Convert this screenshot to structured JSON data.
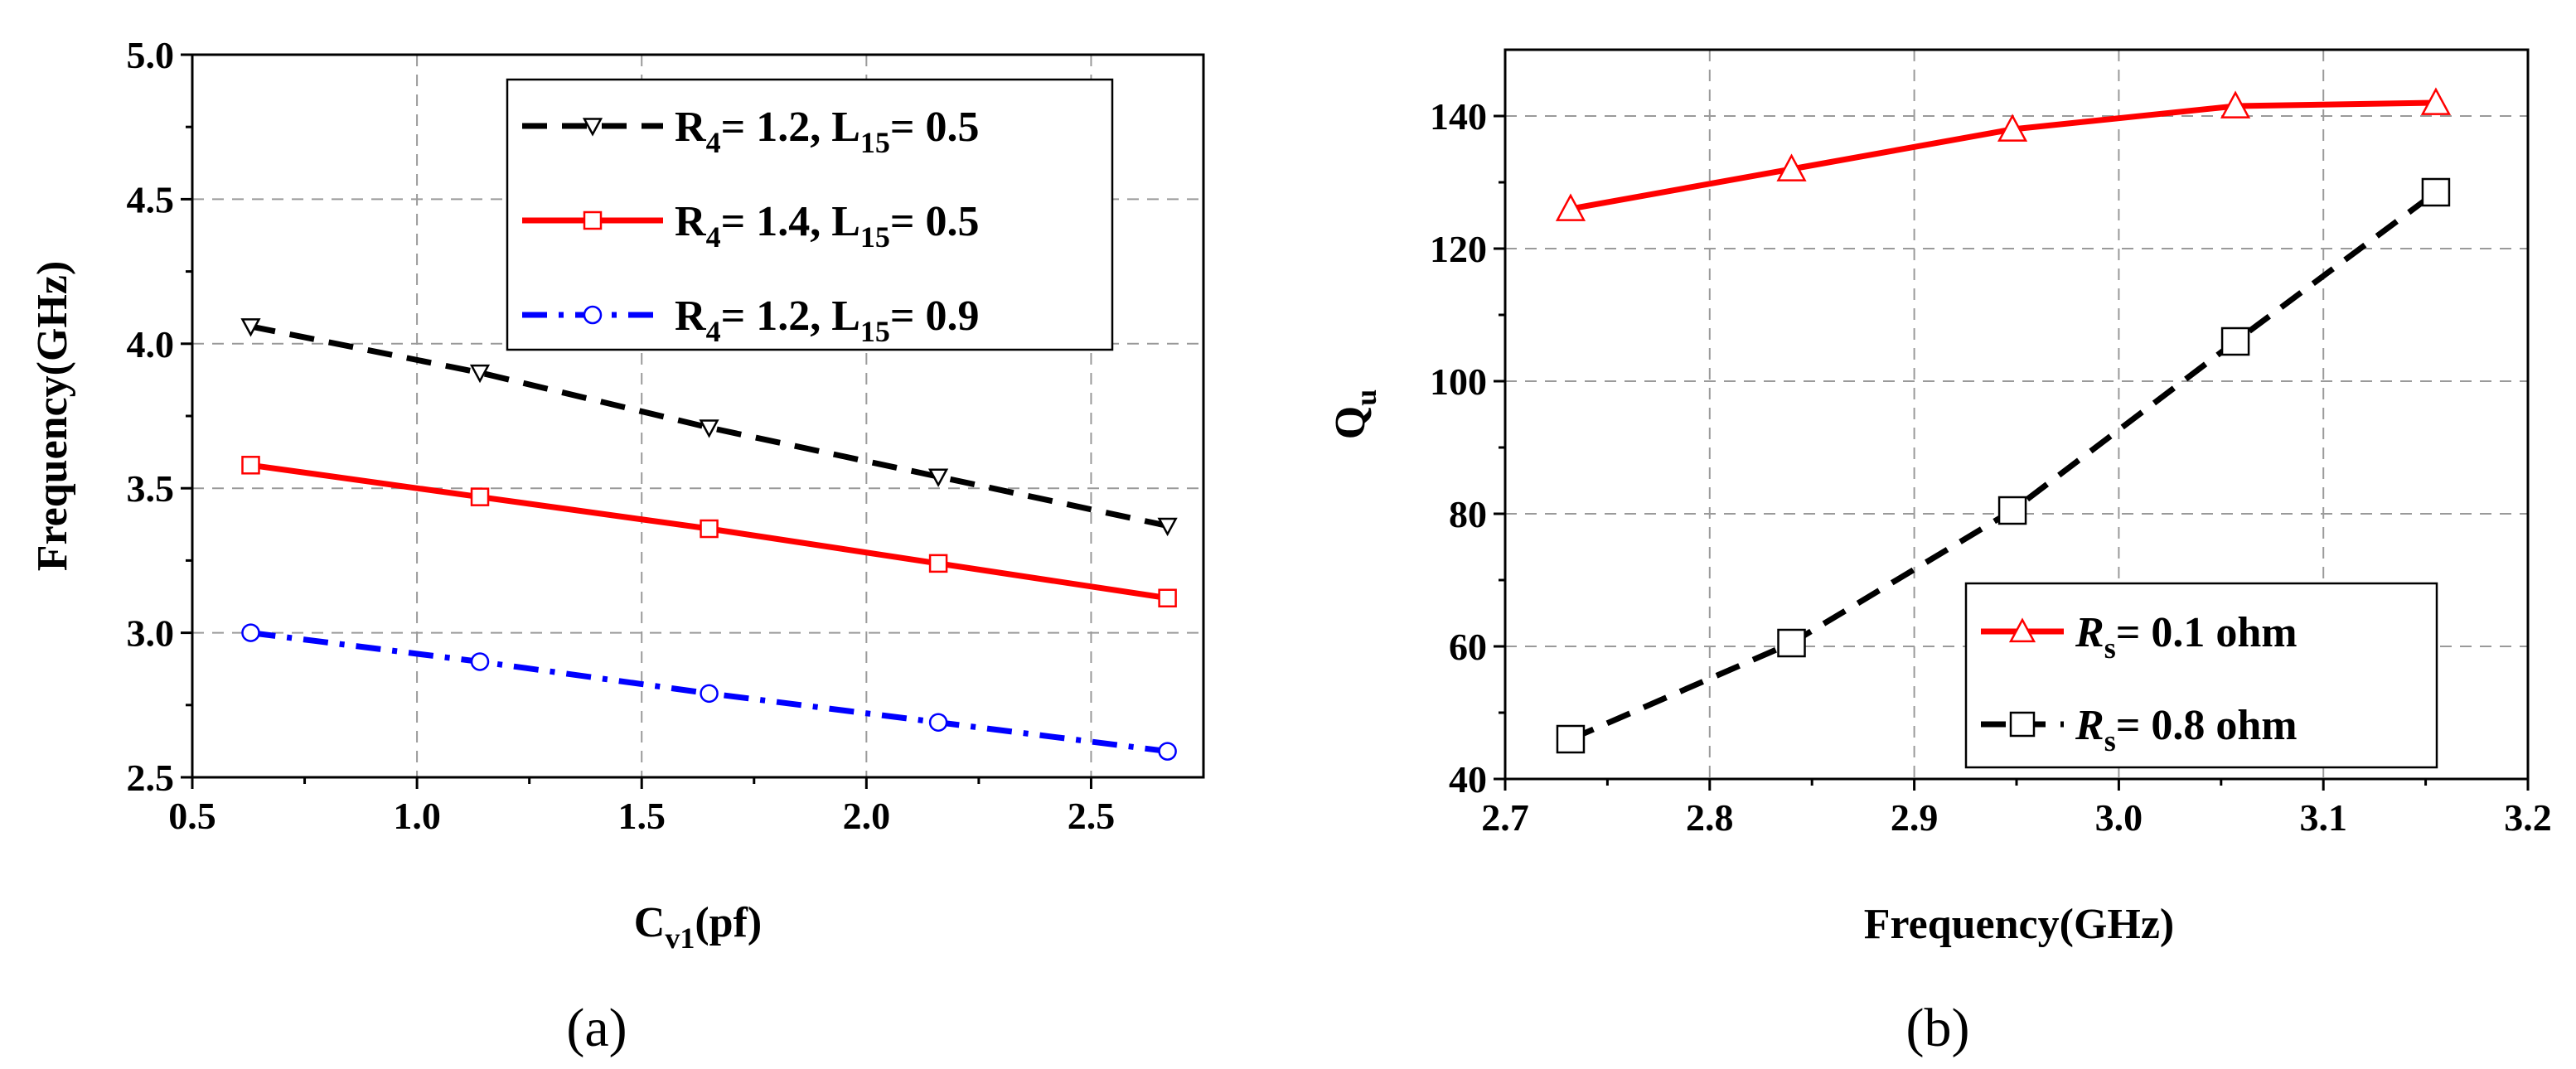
{
  "chart_data": [
    {
      "type": "line",
      "panel_label": "(a)",
      "title": "",
      "xlabel": "C",
      "xlabel_sub": "v1",
      "xlabel_rest": "(pf)",
      "ylabel": "Frequency(GHz)",
      "xlim": [
        0.5,
        2.75
      ],
      "ylim": [
        2.5,
        5.0
      ],
      "xticks": [
        "0.5",
        "1.0",
        "1.5",
        "2.0",
        "2.5"
      ],
      "yticks": [
        "2.5",
        "3.0",
        "3.5",
        "4.0",
        "4.5",
        "5.0"
      ],
      "legend_position": "top-right",
      "grid": true,
      "series": [
        {
          "name": "R4= 1.2, L15= 0.5",
          "legend_parts": [
            "R",
            "4",
            "= 1.2, L",
            "15",
            "= 0.5"
          ],
          "color": "#000000",
          "line_style": "dash",
          "marker": "triangle-down",
          "x": [
            0.63,
            1.14,
            1.65,
            2.16,
            2.67
          ],
          "y": [
            4.06,
            3.9,
            3.71,
            3.54,
            3.37
          ]
        },
        {
          "name": "R4= 1.4, L15= 0.5",
          "legend_parts": [
            "R",
            "4",
            "= 1.4, L",
            "15",
            "= 0.5"
          ],
          "color": "#ff0000",
          "line_style": "solid",
          "marker": "square",
          "x": [
            0.63,
            1.14,
            1.65,
            2.16,
            2.67
          ],
          "y": [
            3.58,
            3.47,
            3.36,
            3.24,
            3.12
          ]
        },
        {
          "name": "R4= 1.2, L15= 0.9",
          "legend_parts": [
            "R",
            "4",
            "= 1.2, L",
            "15",
            "= 0.9"
          ],
          "color": "#0000ff",
          "line_style": "dash-dot",
          "marker": "circle",
          "x": [
            0.63,
            1.14,
            1.65,
            2.16,
            2.67
          ],
          "y": [
            3.0,
            2.9,
            2.79,
            2.69,
            2.59
          ]
        }
      ]
    },
    {
      "type": "line",
      "panel_label": "(b)",
      "title": "",
      "xlabel": "Frequency(GHz)",
      "ylabel": "Q",
      "ylabel_sub": "u",
      "xlim": [
        2.7,
        3.2
      ],
      "ylim": [
        40,
        150
      ],
      "xticks": [
        "2.7",
        "2.8",
        "2.9",
        "3.0",
        "3.1",
        "3.2"
      ],
      "yticks": [
        "40",
        "60",
        "80",
        "100",
        "120",
        "140"
      ],
      "legend_position": "bottom-right",
      "grid": true,
      "series": [
        {
          "name": "Rs= 0.1 ohm",
          "legend_parts": [
            "R",
            "s",
            "= 0.1 ohm"
          ],
          "color": "#ff0000",
          "line_style": "solid",
          "marker": "triangle-up",
          "x": [
            2.732,
            2.84,
            2.948,
            3.057,
            3.155
          ],
          "y": [
            126,
            132,
            138,
            141.5,
            142
          ]
        },
        {
          "name": "Rs= 0.8 ohm",
          "legend_parts": [
            "R",
            "s",
            "= 0.8 ohm"
          ],
          "color": "#000000",
          "line_style": "dash",
          "marker": "square",
          "x": [
            2.732,
            2.84,
            2.948,
            3.057,
            3.155
          ],
          "y": [
            46,
            60.5,
            80.5,
            106,
            128.5
          ]
        }
      ]
    }
  ]
}
